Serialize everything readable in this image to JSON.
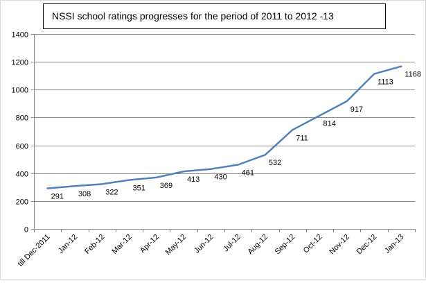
{
  "chart_data": {
    "type": "line",
    "title": "NSSI school ratings progresses for the period of 2011 to 2012 -13",
    "xlabel": "",
    "ylabel": "",
    "categories": [
      "till Dec-2011",
      "Jan-12",
      "Feb-12",
      "Mar-12",
      "Apr-12",
      "May-12",
      "Jun-12",
      "Jul-12",
      "Aug-12",
      "Sep-12",
      "Oct-12",
      "Nov-12",
      "Dec-12",
      "Jan-13"
    ],
    "series": [
      {
        "values": [
          291,
          308,
          322,
          351,
          369,
          413,
          430,
          461,
          532,
          711,
          814,
          917,
          1113,
          1168
        ]
      }
    ],
    "ylim": [
      0,
      1400
    ],
    "yticks": [
      "0",
      "200",
      "400",
      "600",
      "800",
      "1000",
      "1200",
      "1400"
    ],
    "grid": "horizontal",
    "legend": "none",
    "line_color": "#4f81bd",
    "grid_color": "#868686"
  }
}
